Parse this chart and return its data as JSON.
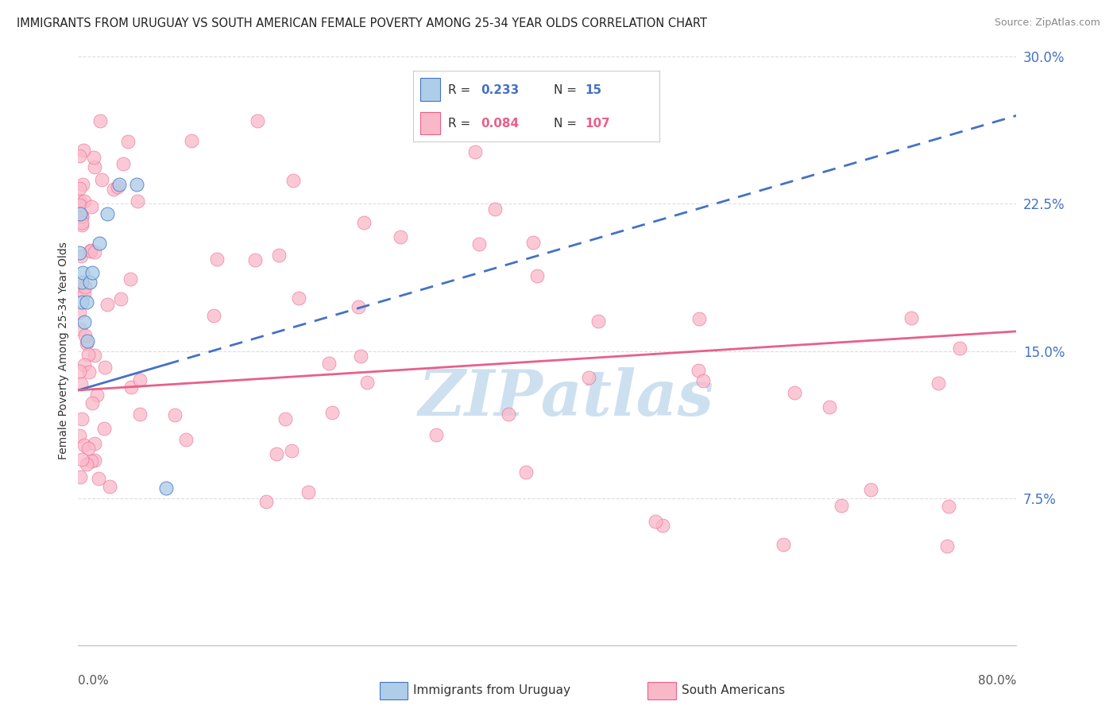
{
  "title": "IMMIGRANTS FROM URUGUAY VS SOUTH AMERICAN FEMALE POVERTY AMONG 25-34 YEAR OLDS CORRELATION CHART",
  "source": "Source: ZipAtlas.com",
  "ylabel": "Female Poverty Among 25-34 Year Olds",
  "xmin": 0.0,
  "xmax": 0.8,
  "ymin": 0.0,
  "ymax": 0.3,
  "ytick_vals": [
    0.075,
    0.15,
    0.225,
    0.3
  ],
  "ytick_labels": [
    "7.5%",
    "15.0%",
    "22.5%",
    "30.0%"
  ],
  "uruguay_scatter_color": "#aecde8",
  "south_american_scatter_color": "#f9b8c8",
  "uruguay_line_color": "#4472c4",
  "south_american_line_color": "#e8608a",
  "watermark": "ZIPatlas",
  "watermark_color": "#cde0f0",
  "background_color": "#ffffff",
  "grid_color": "#dddddd",
  "title_color": "#222222",
  "source_color": "#888888",
  "tick_label_color": "#4472c4",
  "axis_label_color": "#333333",
  "legend_border_color": "#cccccc",
  "legend_R_color": "#4472c4",
  "legend_N_color": "#e8608a",
  "bottom_label_color": "#333333"
}
